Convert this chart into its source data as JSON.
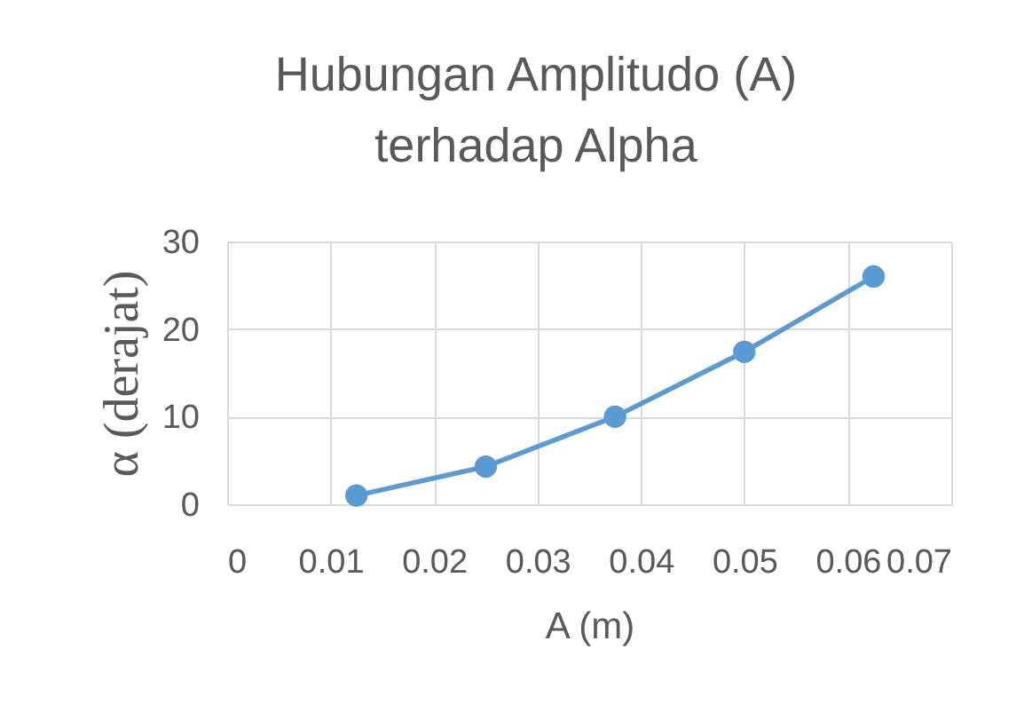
{
  "chart_data": {
    "type": "line",
    "title": "Hubungan Amplitudo (A)\nterhadap Alpha",
    "xlabel": "A (m)",
    "ylabel": "α (derajat)",
    "x": [
      0.0125,
      0.025,
      0.0375,
      0.05,
      0.0625
    ],
    "series": [
      {
        "color": "#5b9bd5",
        "values": [
          1,
          4.3,
          10,
          17.4,
          26
        ]
      }
    ],
    "xlim": [
      0,
      0.07
    ],
    "xticks": [
      0,
      0.01,
      0.02,
      0.03,
      0.04,
      0.05,
      0.06,
      0.07
    ],
    "ylim": [
      0,
      30
    ],
    "yticks": [
      0,
      10,
      20,
      30
    ],
    "grid": true,
    "marker": "circle",
    "line_style": "solid"
  }
}
